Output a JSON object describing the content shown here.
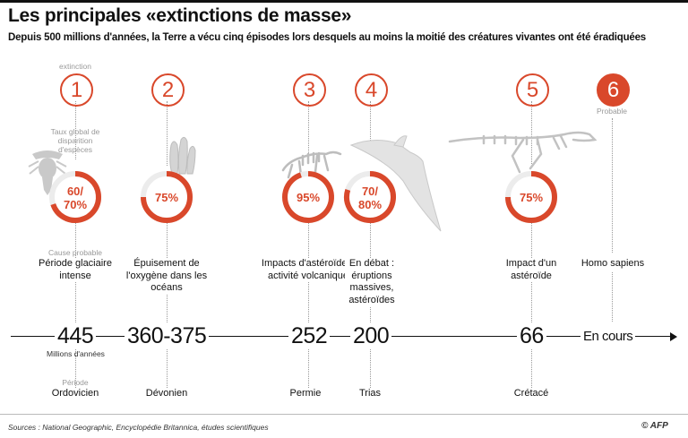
{
  "title": "Les principales «extinctions de masse»",
  "subtitle": "Depuis 500 millions d'années, la Terre a vécu cinq épisodes lors desquels au moins la moitié des créatures vivantes ont été éradiquées",
  "labels": {
    "extinction": "extinction",
    "rate": "Taux global de disparition d'espèces",
    "cause": "Cause probable",
    "unit": "Millions d'années",
    "period": "Période",
    "probable": "Probable"
  },
  "colors": {
    "accent": "#d9482b",
    "ring_track": "#ececec",
    "silhouette": "#c9c9c9"
  },
  "events": [
    {
      "number": "1",
      "percent_line1": "60/",
      "percent_line2": "70%",
      "rate_fraction": 0.7,
      "cause": "Période glaciaire intense",
      "year": "445",
      "period": "Ordovicien"
    },
    {
      "number": "2",
      "percent_line1": "75%",
      "percent_line2": "",
      "rate_fraction": 0.75,
      "cause": "Épuisement de l'oxygène dans les océans",
      "year": "360-375",
      "period": "Dévonien"
    },
    {
      "number": "3",
      "percent_line1": "95%",
      "percent_line2": "",
      "rate_fraction": 0.95,
      "cause": "Impacts d'astéroïdes, activité volcanique",
      "year": "252",
      "period": "Permien"
    },
    {
      "number": "4",
      "percent_line1": "70/",
      "percent_line2": "80%",
      "rate_fraction": 0.8,
      "cause": "En débat : éruptions massives, astéroïdes",
      "year": "200",
      "period": "Trias"
    },
    {
      "number": "5",
      "percent_line1": "75%",
      "percent_line2": "",
      "rate_fraction": 0.75,
      "cause": "Impact d'un astéroïde",
      "year": "66",
      "period": "Crétacé"
    },
    {
      "number": "6",
      "cause": "Homo sapiens",
      "year": "En cours"
    }
  ],
  "footer": {
    "sources": "Sources : National Geographic, Encyclopédie Britannica, études scientifiques",
    "logo": "© AFP"
  }
}
